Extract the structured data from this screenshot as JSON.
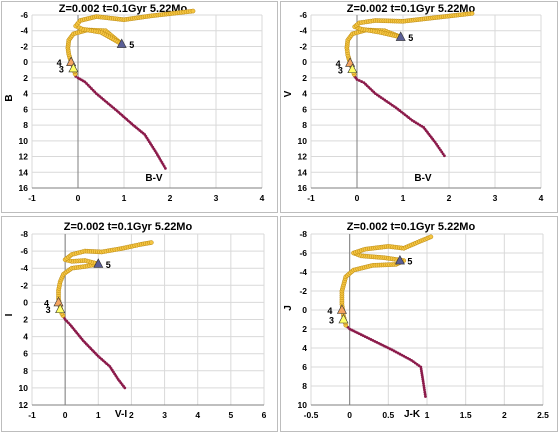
{
  "colors": {
    "grid": "#d9d9d9",
    "axis": "#7f7f7f",
    "giant_branch": "#f5c542",
    "giant_branch_edge": "#b8860b",
    "main_sequence": "#8b1a4a",
    "marker_triangle_blue": "#5b5f97",
    "marker_triangle_orange": "#f4a460",
    "marker_triangle_yellow": "#ffff66"
  },
  "chart_data": [
    {
      "type": "scatter",
      "title": "Z=0.002  t=0.1Gyr 5.22Mo",
      "xlabel": "B-V",
      "ylabel": "B",
      "xlim": [
        -1,
        4
      ],
      "ylim": [
        16,
        -6
      ],
      "y_inverted": true,
      "xticks": [
        "-1",
        "0",
        "1",
        "2",
        "3",
        "4"
      ],
      "yticks": [
        "-6",
        "-4",
        "-2",
        "0",
        "2",
        "4",
        "6",
        "8",
        "10",
        "12",
        "14",
        "16"
      ],
      "xtick_values": [
        -1,
        0,
        1,
        2,
        3,
        4
      ],
      "ytick_values": [
        -6,
        -4,
        -2,
        0,
        2,
        4,
        6,
        8,
        10,
        12,
        14,
        16
      ],
      "grid": true,
      "series": [
        {
          "points": [
            [
              1.9,
              13.5
            ],
            [
              1.7,
              11.5
            ],
            [
              1.45,
              9.2
            ],
            [
              1.2,
              8.0
            ],
            [
              0.85,
              6.2
            ],
            [
              0.4,
              4.0
            ],
            [
              0.15,
              2.5
            ],
            [
              0.0,
              2.0
            ],
            [
              -0.05,
              1.8
            ],
            [
              -0.1,
              0.6
            ],
            [
              -0.15,
              0.0
            ],
            [
              -0.2,
              -1.0
            ],
            [
              -0.22,
              -1.8
            ],
            [
              -0.2,
              -2.8
            ],
            [
              -0.1,
              -3.6
            ],
            [
              0.2,
              -4.1
            ],
            [
              0.6,
              -4.0
            ],
            [
              0.95,
              -2.3
            ],
            [
              0.5,
              -3.8
            ],
            [
              0.1,
              -4.2
            ],
            [
              -0.05,
              -4.6
            ],
            [
              0.05,
              -5.3
            ],
            [
              0.4,
              -5.8
            ],
            [
              1.0,
              -5.4
            ],
            [
              1.6,
              -5.9
            ],
            [
              2.2,
              -6.3
            ],
            [
              2.5,
              -6.5
            ]
          ]
        }
      ],
      "markers": [
        {
          "label": "5",
          "x": 0.95,
          "y": -2.3,
          "style": "blue"
        },
        {
          "label": "4",
          "x": -0.15,
          "y": 0.0,
          "style": "orange"
        },
        {
          "label": "3",
          "x": -0.1,
          "y": 0.8,
          "style": "yellow"
        }
      ]
    },
    {
      "type": "scatter",
      "title": "Z=0.002  t=0.1Gyr 5.22Mo",
      "xlabel": "B-V",
      "ylabel": "V",
      "xlim": [
        -1,
        4
      ],
      "ylim": [
        16,
        -6
      ],
      "y_inverted": true,
      "xticks": [
        "-1",
        "0",
        "1",
        "2",
        "3",
        "4"
      ],
      "yticks": [
        "-6",
        "-4",
        "-2",
        "0",
        "2",
        "4",
        "6",
        "8",
        "10",
        "12",
        "14",
        "16"
      ],
      "xtick_values": [
        -1,
        0,
        1,
        2,
        3,
        4
      ],
      "ytick_values": [
        -6,
        -4,
        -2,
        0,
        2,
        4,
        6,
        8,
        10,
        12,
        14,
        16
      ],
      "grid": true,
      "series": [
        {
          "points": [
            [
              1.9,
              11.9
            ],
            [
              1.7,
              10.2
            ],
            [
              1.45,
              8.3
            ],
            [
              1.2,
              7.4
            ],
            [
              0.85,
              5.8
            ],
            [
              0.4,
              4.0
            ],
            [
              0.15,
              2.6
            ],
            [
              0.0,
              2.2
            ],
            [
              -0.05,
              1.8
            ],
            [
              -0.1,
              0.8
            ],
            [
              -0.15,
              0.1
            ],
            [
              -0.2,
              -0.9
            ],
            [
              -0.22,
              -1.8
            ],
            [
              -0.2,
              -2.8
            ],
            [
              -0.1,
              -3.6
            ],
            [
              0.2,
              -4.1
            ],
            [
              0.6,
              -4.0
            ],
            [
              0.95,
              -3.2
            ],
            [
              0.5,
              -3.8
            ],
            [
              0.1,
              -4.2
            ],
            [
              -0.05,
              -4.5
            ],
            [
              0.05,
              -5.0
            ],
            [
              0.4,
              -5.3
            ],
            [
              1.0,
              -5.2
            ],
            [
              1.6,
              -5.6
            ],
            [
              2.2,
              -6.0
            ],
            [
              2.5,
              -6.2
            ]
          ]
        }
      ],
      "markers": [
        {
          "label": "5",
          "x": 0.95,
          "y": -3.2,
          "style": "blue"
        },
        {
          "label": "4",
          "x": -0.15,
          "y": 0.1,
          "style": "orange"
        },
        {
          "label": "3",
          "x": -0.1,
          "y": 0.9,
          "style": "yellow"
        }
      ]
    },
    {
      "type": "scatter",
      "title": "Z=0.002  t=0.1Gyr 5.22Mo",
      "xlabel": "V-I",
      "ylabel": "I",
      "xlim": [
        -1,
        6
      ],
      "ylim": [
        12,
        -8
      ],
      "y_inverted": true,
      "xticks": [
        "-1",
        "0",
        "1",
        "2",
        "3",
        "4",
        "5",
        "6"
      ],
      "yticks": [
        "-8",
        "-6",
        "-4",
        "-2",
        "0",
        "2",
        "4",
        "6",
        "8",
        "10",
        "12"
      ],
      "xtick_values": [
        -1,
        0,
        1,
        2,
        3,
        4,
        5,
        6
      ],
      "ytick_values": [
        -8,
        -6,
        -4,
        -2,
        0,
        2,
        4,
        6,
        8,
        10,
        12
      ],
      "grid": true,
      "series": [
        {
          "points": [
            [
              1.8,
              10.0
            ],
            [
              1.6,
              9.0
            ],
            [
              1.35,
              7.5
            ],
            [
              1.0,
              6.3
            ],
            [
              0.55,
              4.5
            ],
            [
              0.15,
              2.6
            ],
            [
              0.0,
              2.0
            ],
            [
              -0.1,
              1.3
            ],
            [
              -0.15,
              0.5
            ],
            [
              -0.2,
              -0.4
            ],
            [
              -0.2,
              -1.4
            ],
            [
              -0.15,
              -2.4
            ],
            [
              -0.05,
              -3.3
            ],
            [
              0.2,
              -4.0
            ],
            [
              0.6,
              -4.2
            ],
            [
              1.0,
              -4.5
            ],
            [
              0.6,
              -4.9
            ],
            [
              0.2,
              -4.8
            ],
            [
              0.0,
              -5.0
            ],
            [
              0.2,
              -5.6
            ],
            [
              0.6,
              -6.0
            ],
            [
              1.1,
              -5.9
            ],
            [
              1.7,
              -6.3
            ],
            [
              2.3,
              -6.8
            ],
            [
              2.6,
              -7.0
            ]
          ]
        }
      ],
      "markers": [
        {
          "label": "5",
          "x": 1.0,
          "y": -4.5,
          "style": "blue"
        },
        {
          "label": "4",
          "x": -0.2,
          "y": 0.0,
          "style": "orange"
        },
        {
          "label": "3",
          "x": -0.15,
          "y": 0.8,
          "style": "yellow"
        }
      ]
    },
    {
      "type": "scatter",
      "title": "Z=0.002  t=0.1Gyr 5.22Mo",
      "xlabel": "J-K",
      "ylabel": "J",
      "xlim": [
        -0.5,
        2.5
      ],
      "ylim": [
        10,
        -8
      ],
      "y_inverted": true,
      "xticks": [
        "-0.5",
        "0",
        "0.5",
        "1",
        "1.5",
        "2",
        "2.5"
      ],
      "yticks": [
        "-8",
        "-6",
        "-4",
        "-2",
        "0",
        "2",
        "4",
        "6",
        "8",
        "10"
      ],
      "xtick_values": [
        -0.5,
        0,
        0.5,
        1,
        1.5,
        2,
        2.5
      ],
      "ytick_values": [
        -8,
        -6,
        -4,
        -2,
        0,
        2,
        4,
        6,
        8,
        10
      ],
      "grid": true,
      "series": [
        {
          "points": [
            [
              0.98,
              9.1
            ],
            [
              0.95,
              7.5
            ],
            [
              0.92,
              6.0
            ],
            [
              0.8,
              5.3
            ],
            [
              0.55,
              4.2
            ],
            [
              0.25,
              3.0
            ],
            [
              0.0,
              2.0
            ],
            [
              -0.05,
              1.6
            ],
            [
              -0.08,
              0.6
            ],
            [
              -0.1,
              -0.6
            ],
            [
              -0.1,
              -2.0
            ],
            [
              -0.05,
              -3.5
            ],
            [
              0.05,
              -4.2
            ],
            [
              0.3,
              -4.7
            ],
            [
              0.6,
              -4.8
            ],
            [
              0.7,
              -5.2
            ],
            [
              0.45,
              -5.5
            ],
            [
              0.15,
              -5.7
            ],
            [
              0.05,
              -6.0
            ],
            [
              0.2,
              -6.4
            ],
            [
              0.5,
              -6.7
            ],
            [
              0.7,
              -6.5
            ],
            [
              0.9,
              -7.2
            ],
            [
              1.05,
              -7.7
            ]
          ]
        }
      ],
      "markers": [
        {
          "label": "5",
          "x": 0.65,
          "y": -5.2,
          "style": "blue"
        },
        {
          "label": "4",
          "x": -0.1,
          "y": 0.0,
          "style": "orange"
        },
        {
          "label": "3",
          "x": -0.08,
          "y": 1.0,
          "style": "yellow"
        }
      ]
    }
  ]
}
